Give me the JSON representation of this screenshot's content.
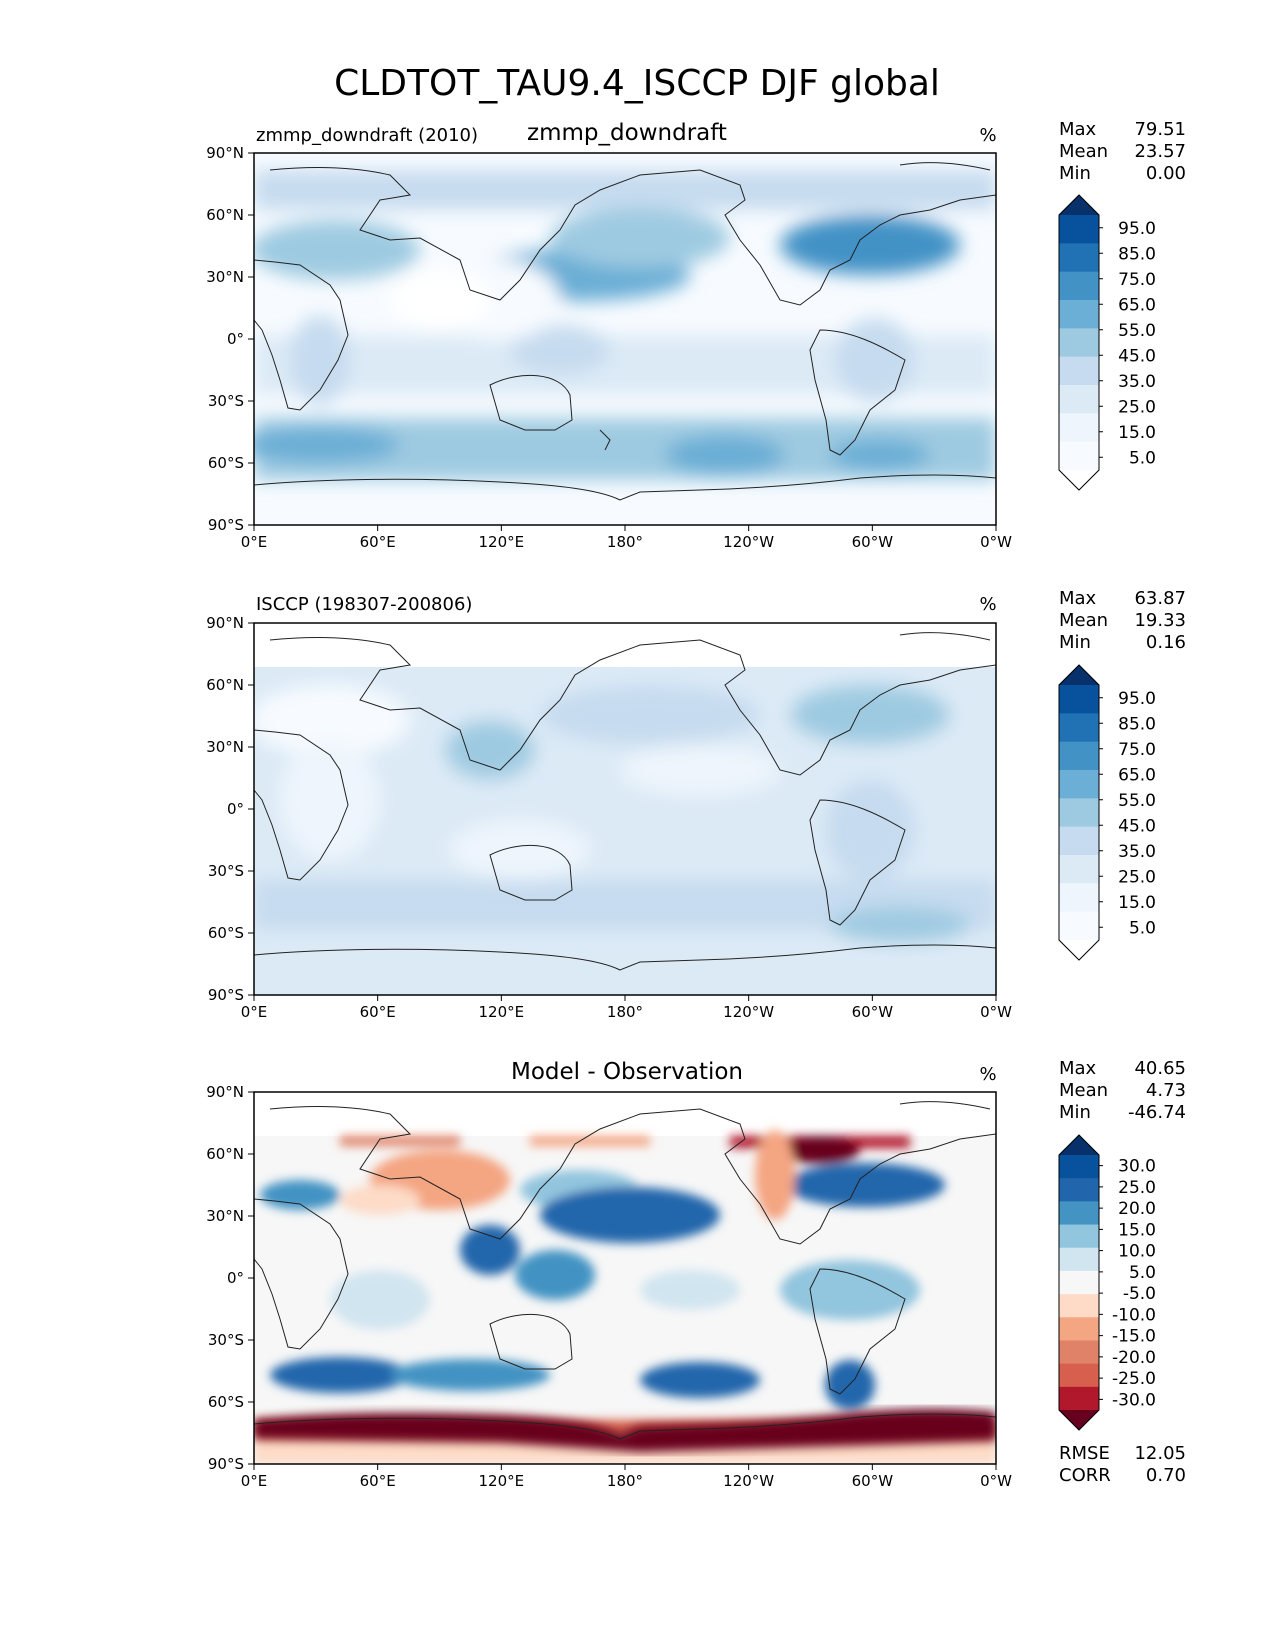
{
  "figure": {
    "title": "CLDTOT_TAU9.4_ISCCP DJF global"
  },
  "axes": {
    "lat_ticks": [
      "90°N",
      "60°N",
      "30°N",
      "0°",
      "30°S",
      "60°S",
      "90°S"
    ],
    "lon_ticks": [
      "0°E",
      "60°E",
      "120°E",
      "180°",
      "120°W",
      "60°W",
      "0°W"
    ]
  },
  "panels": [
    {
      "left_title": "zmmp_downdraft (2010)",
      "center_title": "zmmp_downdraft",
      "units": "%",
      "palette": "sequential",
      "stats": [
        {
          "label": "Max",
          "value": "79.51"
        },
        {
          "label": "Mean",
          "value": "23.57"
        },
        {
          "label": "Min",
          "value": "0.00"
        }
      ],
      "colorbar_ticks": [
        "95.0",
        "85.0",
        "75.0",
        "65.0",
        "55.0",
        "45.0",
        "35.0",
        "25.0",
        "15.0",
        "5.0"
      ],
      "colorbar_colors": [
        "#08306b",
        "#08519c",
        "#2171b5",
        "#4292c6",
        "#6baed6",
        "#9ecae1",
        "#c6dbef",
        "#dceaf6",
        "#eef5fc",
        "#f7fbff",
        "#ffffff"
      ]
    },
    {
      "left_title": "ISCCP (198307-200806)",
      "center_title": "",
      "units": "%",
      "palette": "sequential",
      "stats": [
        {
          "label": "Max",
          "value": "63.87"
        },
        {
          "label": "Mean",
          "value": "19.33"
        },
        {
          "label": "Min",
          "value": "0.16"
        }
      ],
      "colorbar_ticks": [
        "95.0",
        "85.0",
        "75.0",
        "65.0",
        "55.0",
        "45.0",
        "35.0",
        "25.0",
        "15.0",
        "5.0"
      ],
      "colorbar_colors": [
        "#08306b",
        "#08519c",
        "#2171b5",
        "#4292c6",
        "#6baed6",
        "#9ecae1",
        "#c6dbef",
        "#dceaf6",
        "#eef5fc",
        "#f7fbff",
        "#ffffff"
      ]
    },
    {
      "left_title": "",
      "center_title": "Model - Observation",
      "units": "%",
      "palette": "diverging",
      "stats": [
        {
          "label": "Max",
          "value": "40.65"
        },
        {
          "label": "Mean",
          "value": "4.73"
        },
        {
          "label": "Min",
          "value": "-46.74"
        }
      ],
      "colorbar_ticks": [
        "30.0",
        "25.0",
        "20.0",
        "15.0",
        "10.0",
        "5.0",
        "-5.0",
        "-10.0",
        "-15.0",
        "-20.0",
        "-25.0",
        "-30.0"
      ],
      "colorbar_colors": [
        "#08306b",
        "#08519c",
        "#2166ac",
        "#4393c3",
        "#92c5de",
        "#d1e5f0",
        "#f7f7f7",
        "#fddbc7",
        "#f4a582",
        "#e08268",
        "#d6604d",
        "#b2182b",
        "#67001f"
      ],
      "footer_stats": [
        {
          "label": "RMSE",
          "value": "12.05"
        },
        {
          "label": "CORR",
          "value": "0.70"
        }
      ]
    }
  ]
}
